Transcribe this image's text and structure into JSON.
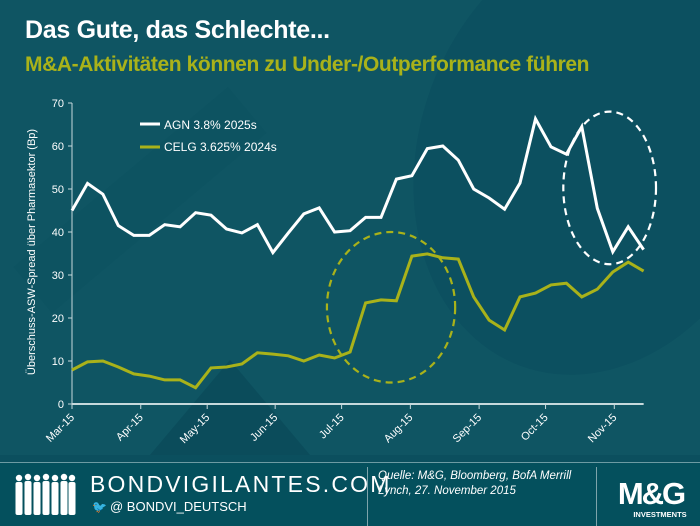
{
  "header": {
    "title": "Das Gute, das Schlechte...",
    "subtitle": "M&A-Aktivitäten können zu Under-/Outperformance führen"
  },
  "colors": {
    "background": "#0f5563",
    "footer": "#04505d",
    "agn": "#ffffff",
    "celg": "#a9b21a",
    "axis": "#c7d9dc"
  },
  "chart_data": {
    "type": "line",
    "title": "",
    "xlabel": "",
    "ylabel": "Überschuss-ASW-Spread über Pharmasektor (Bp)",
    "ylim": [
      0,
      70
    ],
    "yticks": [
      "0",
      "10",
      "20",
      "30",
      "40",
      "50",
      "60",
      "70"
    ],
    "xticks": [
      "Mar-15",
      "Apr-15",
      "May-15",
      "Jun-15",
      "Jul-15",
      "Aug-15",
      "Sep-15",
      "Oct-15",
      "Nov-15"
    ],
    "x_tick_weeks": [
      0,
      4.45,
      8.75,
      13.15,
      17.45,
      21.9,
      26.35,
      30.65,
      35.1
    ],
    "grid": false,
    "legend": "top-left",
    "series": [
      {
        "name": "AGN 3.8% 2025s",
        "color": "#ffffff",
        "values": [
          45.0,
          51.3,
          48.8,
          41.5,
          39.2,
          39.2,
          41.7,
          41.2,
          44.5,
          43.9,
          40.7,
          39.8,
          41.7,
          35.2,
          39.8,
          44.2,
          45.6,
          40.0,
          40.3,
          43.4,
          43.4,
          52.3,
          53.1,
          59.4,
          60.0,
          56.7,
          50.0,
          47.9,
          45.3,
          51.4,
          66.3,
          59.8,
          58.1,
          64.5,
          45.5,
          35.4,
          41.2,
          35.9
        ]
      },
      {
        "name": "CELG 3.625% 2024s",
        "color": "#a9b21a",
        "values": [
          7.9,
          9.8,
          10.0,
          8.6,
          7.0,
          6.5,
          5.6,
          5.6,
          3.8,
          8.4,
          8.6,
          9.3,
          11.9,
          11.6,
          11.2,
          10.0,
          11.4,
          10.7,
          12.1,
          23.5,
          24.2,
          24.0,
          34.4,
          34.9,
          34.0,
          33.7,
          24.9,
          19.5,
          17.2,
          24.9,
          25.8,
          27.7,
          28.1,
          24.9,
          26.7,
          30.7,
          33.0,
          30.9
        ]
      }
    ],
    "annotations": [
      {
        "type": "dashed-ellipse",
        "color": "#a9b21a",
        "around": "CELG jump Jul-15 to Aug-15",
        "x_weeks": [
          16.5,
          24.8
        ],
        "y_range": [
          5,
          40
        ]
      },
      {
        "type": "dashed-ellipse",
        "color": "#ffffff",
        "around": "AGN drop Oct-15 to Nov-15",
        "x_weeks": [
          31.8,
          37.8
        ],
        "y_range": [
          32.5,
          68
        ]
      }
    ]
  },
  "footer": {
    "brand": "BONDVIGILANTES.COM",
    "twitter_at": "@",
    "handle": "BONDVI_DEUTSCH",
    "source": "Quelle: M&G, Bloomberg, BofA Merrill Lynch, 27. November 2015",
    "logo_text": "M&G",
    "logo_sub": "INVESTMENTS"
  }
}
